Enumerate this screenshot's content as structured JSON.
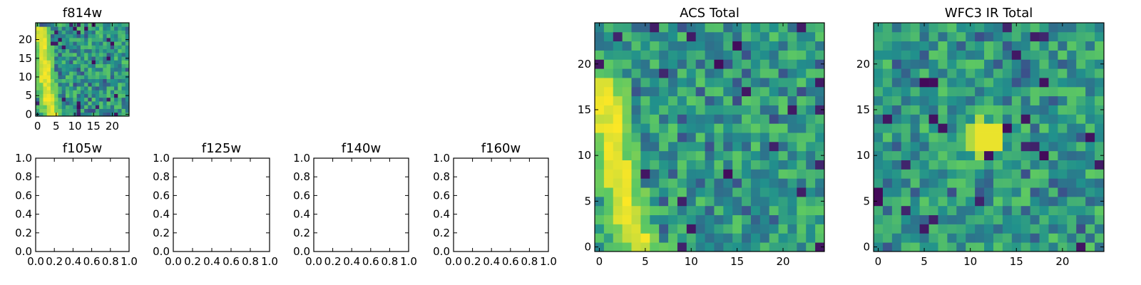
{
  "figure": "astronomical image cutouts by filter",
  "chart_data": [
    {
      "type": "heatmap",
      "title": "f814w",
      "xlabel": "",
      "ylabel": "",
      "xlim": [
        -0.5,
        24.5
      ],
      "ylim": [
        -0.5,
        24.5
      ],
      "xticks": [
        0,
        5,
        10,
        15,
        20
      ],
      "yticks": [
        0,
        5,
        10,
        15,
        20
      ],
      "grid_size": 25,
      "colormap": "viridis",
      "value_range": [
        0,
        1
      ],
      "feature": "bright arc along the left edge from (1,22) curving down to (4,0)",
      "seed": 17
    },
    {
      "type": "empty",
      "title": "f105w",
      "xlim": [
        0,
        1
      ],
      "ylim": [
        0,
        1
      ],
      "xticks": [
        "0.0",
        "0.2",
        "0.4",
        "0.6",
        "0.8",
        "1.0"
      ],
      "yticks": [
        "0.0",
        "0.2",
        "0.4",
        "0.6",
        "0.8",
        "1.0"
      ]
    },
    {
      "type": "empty",
      "title": "f125w",
      "xlim": [
        0,
        1
      ],
      "ylim": [
        0,
        1
      ],
      "xticks": [
        "0.0",
        "0.2",
        "0.4",
        "0.6",
        "0.8",
        "1.0"
      ],
      "yticks": [
        "0.0",
        "0.2",
        "0.4",
        "0.6",
        "0.8",
        "1.0"
      ]
    },
    {
      "type": "empty",
      "title": "f140w",
      "xlim": [
        0,
        1
      ],
      "ylim": [
        0,
        1
      ],
      "xticks": [
        "0.0",
        "0.2",
        "0.4",
        "0.6",
        "0.8",
        "1.0"
      ],
      "yticks": [
        "0.0",
        "0.2",
        "0.4",
        "0.6",
        "0.8",
        "1.0"
      ]
    },
    {
      "type": "empty",
      "title": "f160w",
      "xlim": [
        0,
        1
      ],
      "ylim": [
        0,
        1
      ],
      "xticks": [
        "0.0",
        "0.2",
        "0.4",
        "0.6",
        "0.8",
        "1.0"
      ],
      "yticks": [
        "0.0",
        "0.2",
        "0.4",
        "0.6",
        "0.8",
        "1.0"
      ]
    },
    {
      "type": "heatmap",
      "title": "ACS Total",
      "xlabel": "",
      "ylabel": "",
      "xlim": [
        -0.5,
        24.5
      ],
      "ylim": [
        -0.5,
        24.5
      ],
      "xticks": [
        0,
        5,
        10,
        15,
        20
      ],
      "yticks": [
        0,
        5,
        10,
        15,
        20
      ],
      "grid_size": 25,
      "colormap": "viridis",
      "value_range": [
        0,
        1
      ],
      "feature": "bright arc along the left edge from (0,18) curving down to (5,0)",
      "seed": 41
    },
    {
      "type": "heatmap",
      "title": "WFC3 IR Total",
      "xlabel": "",
      "ylabel": "",
      "xlim": [
        -0.5,
        24.5
      ],
      "ylim": [
        -0.5,
        24.5
      ],
      "xticks": [
        0,
        5,
        10,
        15,
        20
      ],
      "yticks": [
        0,
        5,
        10,
        15,
        20
      ],
      "grid_size": 25,
      "colormap": "viridis",
      "value_range": [
        0,
        1
      ],
      "feature": "bright compact source near (12,12)",
      "seed": 93
    }
  ],
  "colors": {
    "viridis": [
      "#440154",
      "#3b528b",
      "#21918c",
      "#5ec962",
      "#fde725"
    ],
    "axis": "#000000",
    "background": "#ffffff"
  }
}
